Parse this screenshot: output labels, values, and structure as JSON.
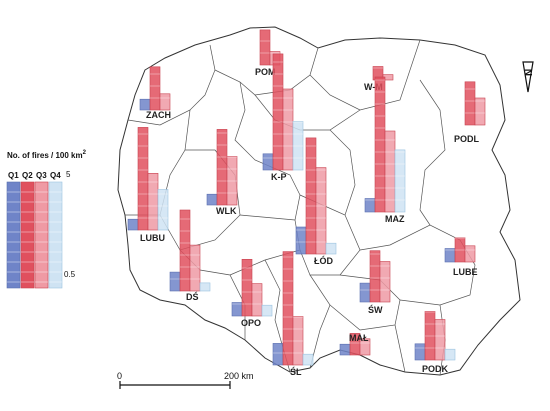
{
  "legend": {
    "title": "No. of fires / 100 km",
    "title_sup": "2",
    "quarters": [
      "Q1",
      "Q2",
      "Q3",
      "Q4"
    ],
    "max_label": "5",
    "min_label": "0.5",
    "colors": [
      "#6f84c8",
      "#e0505e",
      "#ef9aa4",
      "#cfe3f3"
    ]
  },
  "scale_bar": {
    "start_label": "0",
    "end_label": "200 km"
  },
  "north_arrow": {
    "label": "N"
  },
  "chart_data": {
    "type": "bar",
    "title": "",
    "unit": "No. of fires / 100 km2",
    "ylim": [
      0,
      5
    ],
    "series_names": [
      "Q1",
      "Q2",
      "Q3",
      "Q4"
    ],
    "regions": [
      {
        "name": "ZACH",
        "values": [
          0.4,
          1.6,
          0.6,
          0.0
        ]
      },
      {
        "name": "POM",
        "values": [
          0.0,
          1.3,
          0.5,
          0.0
        ]
      },
      {
        "name": "W-M",
        "values": [
          0.0,
          0.5,
          0.2,
          0.0
        ]
      },
      {
        "name": "PODL",
        "values": [
          0.0,
          1.6,
          1.0,
          0.0
        ]
      },
      {
        "name": "LUBU",
        "values": [
          0.4,
          3.8,
          2.1,
          1.5
        ]
      },
      {
        "name": "WLK",
        "values": [
          0.4,
          2.8,
          1.8,
          0.0
        ]
      },
      {
        "name": "K-P",
        "values": [
          0.6,
          4.3,
          3.0,
          1.8
        ]
      },
      {
        "name": "MAZ",
        "values": [
          0.5,
          5.0,
          3.0,
          2.3
        ]
      },
      {
        "name": "ŁÓD",
        "values": [
          1.0,
          4.3,
          3.2,
          0.4
        ]
      },
      {
        "name": "DŚ",
        "values": [
          0.7,
          3.0,
          1.7,
          0.3
        ]
      },
      {
        "name": "LUBE",
        "values": [
          0.5,
          0.9,
          0.6,
          0.0
        ]
      },
      {
        "name": "OPO",
        "values": [
          0.5,
          2.1,
          1.2,
          0.4
        ]
      },
      {
        "name": "ŚW",
        "values": [
          0.7,
          1.9,
          1.5,
          0.0
        ]
      },
      {
        "name": "ŚL",
        "values": [
          0.8,
          4.2,
          1.8,
          0.4
        ]
      },
      {
        "name": "MAŁ",
        "values": [
          0.4,
          0.8,
          0.6,
          0.0
        ]
      },
      {
        "name": "PODK",
        "values": [
          0.6,
          1.8,
          1.5,
          0.4
        ]
      }
    ]
  }
}
